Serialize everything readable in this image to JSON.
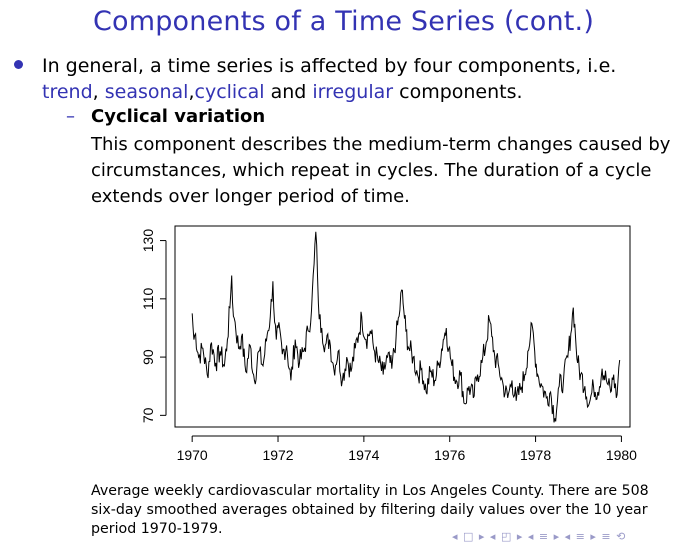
{
  "slide": {
    "title": "Components of a Time Series (cont.)",
    "bullet": {
      "intro": "In general, a time series is affected by four components, i.e.",
      "trend": "trend",
      "sep1": ", ",
      "seasonal": "seasonal",
      "sep2": ",",
      "cyclical": "cyclical",
      "and": " and ",
      "irregular": "irregular",
      "tail": " components."
    },
    "sub": {
      "dash": "–",
      "title": "Cyclical variation",
      "body": "This component describes the medium-term changes caused by circumstances, which repeat in cycles. The duration of a cycle extends over longer period of time."
    },
    "caption": "Average weekly cardiovascular mortality in Los Angeles County. There are 508 six-day smoothed averages obtained by filtering daily values over the 10 year period 1970-1979.",
    "nav": "◂ □ ▸ ◂ ◰ ▸ ◂ ≡ ▸ ◂ ≡ ▸ ≡ ⟲"
  },
  "chart_data": {
    "type": "line",
    "title": "",
    "xlabel": "",
    "ylabel": "",
    "xlim": [
      1970,
      1980
    ],
    "ylim": [
      66,
      135
    ],
    "x_ticks": [
      1970,
      1972,
      1974,
      1976,
      1978,
      1980
    ],
    "y_ticks": [
      70,
      90,
      110,
      130
    ],
    "x_tick_labels": [
      "1970",
      "1972",
      "1974",
      "1976",
      "1978",
      "1980"
    ],
    "y_tick_labels": [
      "70",
      "90",
      "110",
      "130"
    ],
    "grid": false,
    "series": [
      {
        "x": [
          1970.0,
          1970.04,
          1970.08,
          1970.15,
          1970.25,
          1970.35,
          1970.45,
          1970.55,
          1970.65,
          1970.75,
          1970.82,
          1970.88,
          1970.92,
          1970.96,
          1971.0,
          1971.08,
          1971.15,
          1971.25,
          1971.35,
          1971.45,
          1971.55,
          1971.65,
          1971.75,
          1971.82,
          1971.88,
          1971.92,
          1971.96,
          1972.0,
          1972.1,
          1972.2,
          1972.3,
          1972.4,
          1972.5,
          1972.6,
          1972.7,
          1972.78,
          1972.84,
          1972.88,
          1972.92,
          1972.96,
          1973.02,
          1973.1,
          1973.2,
          1973.3,
          1973.4,
          1973.5,
          1973.6,
          1973.7,
          1973.8,
          1973.88,
          1973.95,
          1974.05,
          1974.15,
          1974.25,
          1974.35,
          1974.45,
          1974.55,
          1974.65,
          1974.75,
          1974.82,
          1974.88,
          1974.93,
          1974.98,
          1975.05,
          1975.15,
          1975.25,
          1975.35,
          1975.45,
          1975.55,
          1975.65,
          1975.75,
          1975.85,
          1975.92,
          1975.98,
          1976.05,
          1976.15,
          1976.25,
          1976.35,
          1976.45,
          1976.55,
          1976.65,
          1976.75,
          1976.85,
          1976.92,
          1976.98,
          1977.05,
          1977.15,
          1977.25,
          1977.35,
          1977.45,
          1977.55,
          1977.65,
          1977.75,
          1977.82,
          1977.88,
          1977.93,
          1977.98,
          1978.05,
          1978.15,
          1978.25,
          1978.35,
          1978.45,
          1978.55,
          1978.65,
          1978.75,
          1978.82,
          1978.88,
          1978.93,
          1978.98,
          1979.05,
          1979.15,
          1979.25,
          1979.35,
          1979.45,
          1979.55,
          1979.65,
          1979.75,
          1979.82,
          1979.88,
          1979.92,
          1979.96
        ],
        "y": [
          105,
          96,
          98,
          90,
          93,
          84,
          95,
          88,
          92,
          87,
          96,
          107,
          118,
          104,
          102,
          93,
          97,
          85,
          94,
          82,
          92,
          87,
          98,
          104,
          116,
          102,
          96,
          100,
          91,
          94,
          82,
          96,
          88,
          92,
          99,
          106,
          122,
          133,
          118,
          103,
          100,
          94,
          96,
          86,
          92,
          82,
          90,
          85,
          93,
          98,
          104,
          96,
          99,
          92,
          88,
          84,
          90,
          86,
          97,
          104,
          113,
          106,
          99,
          93,
          90,
          84,
          86,
          78,
          85,
          82,
          88,
          96,
          100,
          93,
          87,
          82,
          84,
          74,
          80,
          76,
          84,
          88,
          95,
          103,
          97,
          90,
          86,
          80,
          76,
          82,
          75,
          79,
          84,
          92,
          97,
          100,
          92,
          84,
          80,
          76,
          78,
          69,
          80,
          82,
          90,
          98,
          107,
          97,
          88,
          84,
          80,
          74,
          80,
          78,
          86,
          82,
          78,
          84,
          76,
          82,
          89
        ]
      }
    ]
  }
}
